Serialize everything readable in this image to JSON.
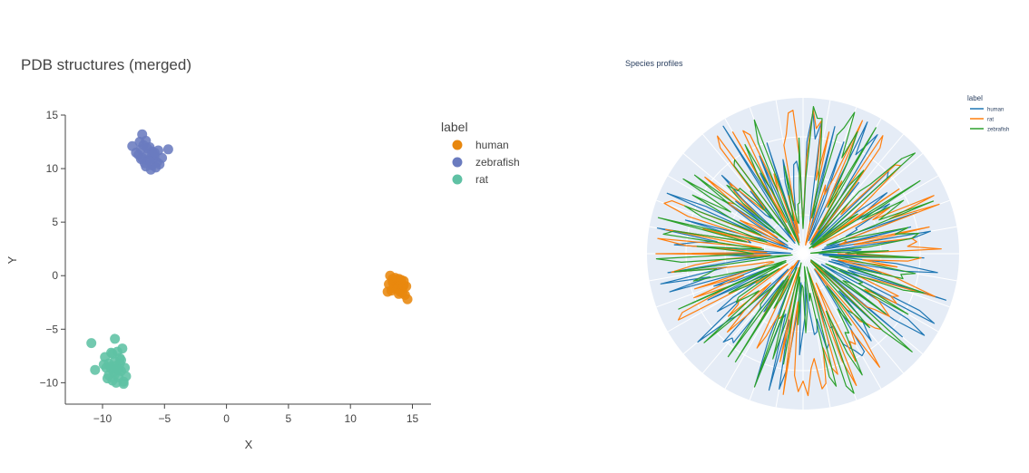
{
  "figure": {
    "background": "#ffffff",
    "polar_background": "#e5ecf6"
  },
  "chart_data": [
    {
      "type": "scatter",
      "title": "PDB structures (merged)",
      "xlabel": "X",
      "ylabel": "Y",
      "xlim": [
        -13,
        16.5
      ],
      "ylim": [
        -12,
        15
      ],
      "xticks": [
        -10,
        -5,
        0,
        5,
        10,
        15
      ],
      "xtick_labels": [
        "−10",
        "−5",
        "0",
        "5",
        "10",
        "15"
      ],
      "yticks": [
        -10,
        -5,
        0,
        5,
        10,
        15
      ],
      "ytick_labels": [
        "−10",
        "−5",
        "0",
        "5",
        "10",
        "15"
      ],
      "grid": false,
      "legend_title": "label",
      "legend_position": "right",
      "series": [
        {
          "name": "human",
          "color": "#e8870e",
          "x": [
            13.2,
            13.4,
            13.5,
            13.6,
            13.8,
            13.9,
            14.0,
            14.1,
            14.2,
            14.3,
            14.4,
            13.3,
            13.6,
            13.9,
            14.1,
            14.5,
            13.0,
            13.7,
            14.0,
            14.2,
            13.5,
            13.8,
            14.3,
            13.4,
            13.9,
            14.1,
            14.6,
            13.1
          ],
          "y": [
            0.0,
            -0.6,
            -1.0,
            -0.4,
            -1.2,
            -0.8,
            -1.5,
            -0.9,
            -1.1,
            -0.5,
            -1.8,
            -1.4,
            -0.2,
            -0.3,
            -1.3,
            -1.0,
            -1.5,
            -0.7,
            -0.6,
            -1.6,
            -1.2,
            -1.0,
            -0.9,
            -0.3,
            -1.7,
            -0.4,
            -2.2,
            -0.8
          ]
        },
        {
          "name": "zebrafish",
          "color": "#6a7bbf",
          "x": [
            -6.8,
            -6.5,
            -6.2,
            -6.0,
            -5.8,
            -6.9,
            -7.1,
            -6.4,
            -6.0,
            -5.6,
            -5.2,
            -4.7,
            -7.3,
            -6.7,
            -6.3,
            -5.9,
            -5.5,
            -7.6,
            -6.6,
            -6.1,
            -5.7,
            -6.8,
            -6.4,
            -6.0,
            -6.2,
            -5.8,
            -7.0,
            -6.5,
            -6.9,
            -5.4
          ],
          "y": [
            13.2,
            12.6,
            12.0,
            11.6,
            11.2,
            11.8,
            11.3,
            10.8,
            10.3,
            10.6,
            11.0,
            11.8,
            11.5,
            12.2,
            11.4,
            10.9,
            11.7,
            12.1,
            10.5,
            9.9,
            10.1,
            11.0,
            11.9,
            11.3,
            10.7,
            11.5,
            12.5,
            10.2,
            10.9,
            10.4
          ]
        },
        {
          "name": "rat",
          "color": "#5fc1a4",
          "x": [
            -10.9,
            -10.6,
            -9.8,
            -9.5,
            -9.3,
            -9.0,
            -8.9,
            -8.7,
            -8.5,
            -8.3,
            -8.1,
            -9.6,
            -9.2,
            -8.8,
            -8.4,
            -9.4,
            -9.0,
            -8.6,
            -9.7,
            -9.1,
            -8.9,
            -8.6,
            -8.3,
            -9.5,
            -8.8,
            -9.2,
            -8.5,
            -9.9,
            -8.7,
            -9.3,
            -8.2,
            -9.0
          ],
          "y": [
            -6.3,
            -8.8,
            -7.6,
            -8.2,
            -8.7,
            -9.2,
            -8.4,
            -9.5,
            -8.9,
            -9.9,
            -9.4,
            -9.6,
            -7.3,
            -7.1,
            -6.8,
            -8.5,
            -8.0,
            -8.2,
            -8.6,
            -9.0,
            -10.0,
            -7.7,
            -10.1,
            -9.3,
            -8.7,
            -9.8,
            -7.9,
            -8.3,
            -8.8,
            -7.2,
            -8.6,
            -5.9
          ]
        }
      ]
    },
    {
      "type": "line",
      "subtype": "polar",
      "title": "Species profiles",
      "legend_title": "label",
      "legend_position": "top-right",
      "radial_range": [
        0,
        1
      ],
      "series": [
        {
          "name": "human",
          "color": "#1f77b4",
          "seed": 11
        },
        {
          "name": "rat",
          "color": "#ff7f0e",
          "seed": 29
        },
        {
          "name": "zebrafish",
          "color": "#2ca02c",
          "seed": 47
        }
      ]
    }
  ]
}
